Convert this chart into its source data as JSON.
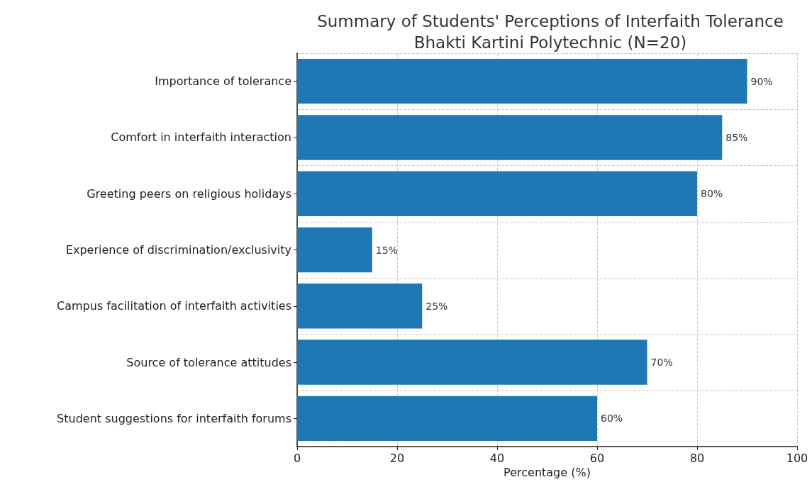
{
  "chart_data": {
    "type": "bar",
    "orientation": "horizontal",
    "title": "Summary of Students' Perceptions of Interfaith Tolerance\nBhakti Kartini Polytechnic (N=20)",
    "xlabel": "Percentage (%)",
    "categories": [
      "Importance of tolerance",
      "Comfort in interfaith interaction",
      "Greeting peers on religious holidays",
      "Experience of discrimination/exclusivity",
      "Campus facilitation of interfaith activities",
      "Source of tolerance attitudes",
      "Student suggestions for interfaith forums"
    ],
    "values": [
      90,
      85,
      80,
      15,
      25,
      70,
      60
    ],
    "value_labels": [
      "90%",
      "85%",
      "80%",
      "15%",
      "25%",
      "70%",
      "60%"
    ],
    "color": "#1f77b4",
    "xlim": [
      0,
      100
    ],
    "xticks": [
      0,
      20,
      40,
      60,
      80,
      100
    ],
    "grid": true
  }
}
